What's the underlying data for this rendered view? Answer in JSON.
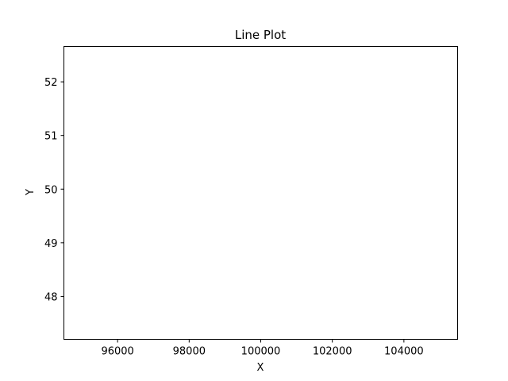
{
  "chart_data": {
    "type": "line",
    "title": "Line Plot",
    "xlabel": "X",
    "ylabel": "Y",
    "xlim": [
      94500,
      105500
    ],
    "ylim": [
      47.2,
      52.66
    ],
    "x_ticks": [
      96000,
      98000,
      100000,
      102000,
      104000
    ],
    "y_ticks": [
      48,
      49,
      50,
      51,
      52
    ],
    "series": [],
    "grid": false,
    "legend": "none"
  }
}
